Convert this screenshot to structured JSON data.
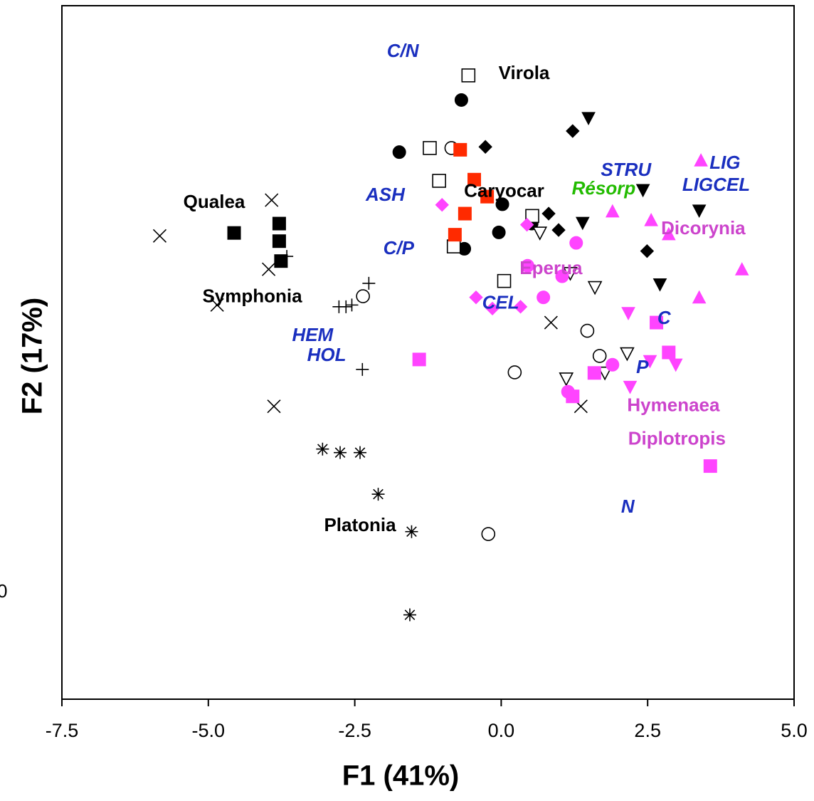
{
  "chart_data": {
    "type": "scatter",
    "xlabel": "F1 (41%)",
    "ylabel": "F2 (17%)",
    "edge_text": "0",
    "xlim": [
      -7.5,
      5.0
    ],
    "xticks": [
      -7.5,
      {
        "value": -5,
        "label": "-5.0"
      },
      -2.5,
      {
        "value": 0,
        "label": "0.0"
      },
      2.5,
      {
        "value": 5,
        "label": "5.0"
      }
    ],
    "ylim": [
      -5.86,
      5.98
    ],
    "series": [
      {
        "marker": "cross",
        "filled": false,
        "color": "#000000",
        "x": [
          -3.92,
          -5.83,
          -3.97,
          -4.85,
          0.85,
          -3.88,
          1.36
        ],
        "values": [
          2.66,
          2.05,
          1.48,
          0.87,
          0.57,
          -0.86,
          -0.86
        ]
      },
      {
        "marker": "square",
        "filled": true,
        "color": "#000000",
        "x": [
          -4.56,
          -3.79,
          -3.79,
          -3.76
        ],
        "values": [
          2.1,
          2.26,
          1.96,
          1.62
        ]
      },
      {
        "marker": "plus",
        "filled": false,
        "color": "#000000",
        "x": [
          -3.66,
          -2.26,
          -2.77,
          -2.65,
          -2.55,
          -2.37
        ],
        "values": [
          1.7,
          1.24,
          0.84,
          0.84,
          0.87,
          -0.23
        ]
      },
      {
        "marker": "circle",
        "filled": false,
        "color": "#000000",
        "x": [
          -0.85,
          -2.36,
          1.47,
          1.68,
          0.23,
          -0.22
        ],
        "values": [
          3.55,
          1.02,
          0.43,
          0.0,
          -0.28,
          -3.04
        ]
      },
      {
        "marker": "asterisk",
        "filled": false,
        "color": "#000000",
        "x": [
          -3.05,
          -2.75,
          -2.41,
          -2.1,
          -1.53,
          -1.56
        ],
        "values": [
          -1.59,
          -1.65,
          -1.65,
          -2.36,
          -3.0,
          -4.42
        ]
      },
      {
        "marker": "circle",
        "filled": true,
        "color": "#000000",
        "x": [
          -0.68,
          -1.74,
          0.02,
          -0.04,
          0.52,
          -0.63
        ],
        "values": [
          4.37,
          3.48,
          2.59,
          2.11,
          2.26,
          1.83
        ]
      },
      {
        "marker": "square",
        "filled": false,
        "color": "#000000",
        "x": [
          -0.56,
          -1.22,
          -1.06,
          0.53,
          -0.81,
          0.05
        ],
        "values": [
          4.79,
          3.55,
          2.99,
          2.39,
          1.87,
          1.28
        ]
      },
      {
        "marker": "square",
        "filled": true,
        "color": "#ff2a00",
        "x": [
          -0.7,
          -0.46,
          -0.24,
          -0.62,
          -0.79
        ],
        "values": [
          3.52,
          3.01,
          2.72,
          2.43,
          2.07
        ]
      },
      {
        "marker": "diamond",
        "filled": true,
        "color": "#000000",
        "x": [
          -0.27,
          1.22,
          0.81,
          0.98,
          2.49
        ],
        "values": [
          3.57,
          3.84,
          2.43,
          2.15,
          1.79
        ]
      },
      {
        "marker": "triangle-down",
        "filled": true,
        "color": "#000000",
        "x": [
          1.49,
          1.39,
          2.42,
          3.38,
          2.71
        ],
        "values": [
          4.06,
          2.27,
          2.83,
          2.48,
          1.22
        ]
      },
      {
        "marker": "triangle-down",
        "filled": false,
        "color": "#000000",
        "x": [
          0.66,
          1.18,
          1.6,
          1.11,
          1.77,
          2.15
        ],
        "values": [
          2.1,
          1.41,
          1.17,
          -0.39,
          -0.29,
          0.04
        ]
      },
      {
        "marker": "triangle-up",
        "filled": true,
        "color": "#ff44ff",
        "x": [
          3.41,
          1.9,
          2.56,
          2.86,
          4.11,
          3.38
        ],
        "values": [
          3.34,
          2.47,
          2.32,
          2.08,
          1.48,
          1.0
        ]
      },
      {
        "marker": "diamond",
        "filled": true,
        "color": "#ff44ff",
        "x": [
          -1.01,
          0.44,
          -0.43,
          -0.15,
          0.33
        ],
        "values": [
          2.58,
          2.24,
          1.0,
          0.81,
          0.84
        ]
      },
      {
        "marker": "circle",
        "filled": true,
        "color": "#ff44ff",
        "x": [
          1.28,
          0.45,
          1.04,
          0.72,
          1.9,
          1.14
        ],
        "values": [
          1.93,
          1.54,
          1.36,
          1.0,
          -0.15,
          -0.61
        ]
      },
      {
        "marker": "triangle-down",
        "filled": true,
        "color": "#ff44ff",
        "x": [
          2.17,
          2.54,
          2.98,
          2.2
        ],
        "values": [
          0.73,
          -0.09,
          -0.15,
          -0.53
        ]
      },
      {
        "marker": "square",
        "filled": true,
        "color": "#ff44ff",
        "x": [
          -1.4,
          2.65,
          2.86,
          1.59,
          1.22,
          3.57
        ],
        "values": [
          -0.06,
          0.57,
          0.06,
          -0.29,
          -0.69,
          -1.88
        ]
      }
    ],
    "annotations": [
      {
        "text": "C/N",
        "x": -1.68,
        "y": 5.19,
        "color": "#1a2fbf",
        "italic": true
      },
      {
        "text": "STRU",
        "x": 2.13,
        "y": 3.16,
        "color": "#1a2fbf",
        "italic": true
      },
      {
        "text": "LIG",
        "x": 3.82,
        "y": 3.28,
        "color": "#1a2fbf",
        "italic": true
      },
      {
        "text": "LIGCEL",
        "x": 3.67,
        "y": 2.9,
        "color": "#1a2fbf",
        "italic": true
      },
      {
        "text": "ASH",
        "x": -1.98,
        "y": 2.73,
        "color": "#1a2fbf",
        "italic": true
      },
      {
        "text": "C/P",
        "x": -1.75,
        "y": 1.82,
        "color": "#1a2fbf",
        "italic": true
      },
      {
        "text": "CEL",
        "x": -0.01,
        "y": 0.89,
        "color": "#1a2fbf",
        "italic": true
      },
      {
        "text": "HEM",
        "x": -3.22,
        "y": 0.34,
        "color": "#1a2fbf",
        "italic": true
      },
      {
        "text": "HOL",
        "x": -2.98,
        "y": 0.0,
        "color": "#1a2fbf",
        "italic": true
      },
      {
        "text": "C",
        "x": 2.78,
        "y": 0.63,
        "color": "#1a2fbf",
        "italic": true
      },
      {
        "text": "P",
        "x": 2.41,
        "y": -0.21,
        "color": "#1a2fbf",
        "italic": true
      },
      {
        "text": "N",
        "x": 2.16,
        "y": -2.59,
        "color": "#1a2fbf",
        "italic": true
      },
      {
        "text": "Résorp",
        "x": 1.75,
        "y": 2.84,
        "color": "#22bb00",
        "italic": true
      },
      {
        "text": "Virola",
        "x": 0.39,
        "y": 4.81,
        "color": "#000000",
        "italic": false
      },
      {
        "text": "Qualea",
        "x": -4.9,
        "y": 2.61,
        "color": "#000000",
        "italic": false
      },
      {
        "text": "Caryocar",
        "x": 0.05,
        "y": 2.8,
        "color": "#000000",
        "italic": false
      },
      {
        "text": "Symphonia",
        "x": -4.25,
        "y": 1.0,
        "color": "#000000",
        "italic": false
      },
      {
        "text": "Platonia",
        "x": -2.41,
        "y": -2.91,
        "color": "#000000",
        "italic": false
      },
      {
        "text": "Dicorynia",
        "x": 3.45,
        "y": 2.16,
        "color": "#cc44cc",
        "italic": false
      },
      {
        "text": "Eperua",
        "x": 0.85,
        "y": 1.48,
        "color": "#cc44cc",
        "italic": false
      },
      {
        "text": "Hymenaea",
        "x": 2.94,
        "y": -0.86,
        "color": "#cc44cc",
        "italic": false
      },
      {
        "text": "Diplotropis",
        "x": 3.0,
        "y": -1.43,
        "color": "#cc44cc",
        "italic": false
      }
    ]
  }
}
